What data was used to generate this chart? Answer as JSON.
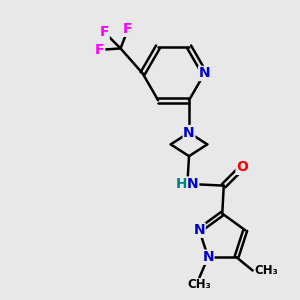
{
  "background_color": "#e8e8e8",
  "bond_color": "#000000",
  "atom_colors": {
    "N": "#0000cc",
    "O": "#ff0000",
    "F": "#ff00ff",
    "C": "#000000",
    "H": "#008080"
  },
  "font_size_atoms": 10,
  "line_width": 1.8,
  "dbo": 0.08,
  "xlim": [
    0,
    10
  ],
  "ylim": [
    0,
    10
  ]
}
